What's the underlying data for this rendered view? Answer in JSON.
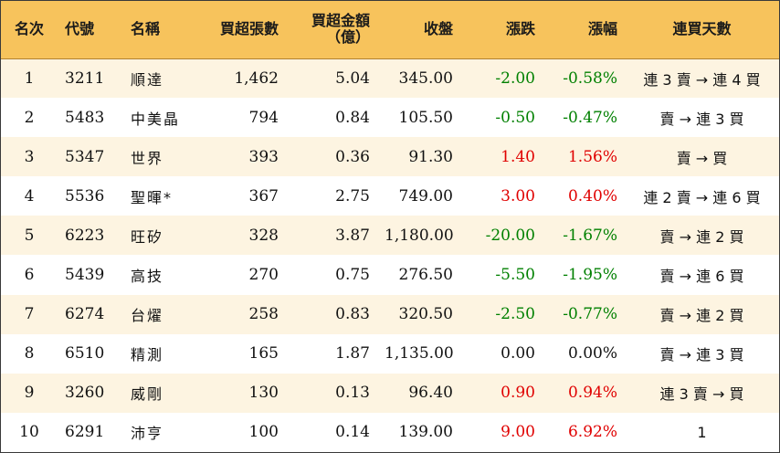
{
  "headers": {
    "rank": "名次",
    "code": "代號",
    "name": "名稱",
    "net_buy_lots": "買超張數",
    "net_buy_amount_1": "買超金額",
    "net_buy_amount_2": "（億）",
    "close": "收盤",
    "change": "漲跌",
    "change_pct": "漲幅",
    "streak": "連買天數"
  },
  "colors": {
    "header_bg": "#f7c35c",
    "stripe_bg": "#fdf4e1",
    "up": "#e00000",
    "down": "#008000"
  },
  "rows": [
    {
      "rank": "1",
      "code": "3211",
      "name": "順達",
      "lots": "1,462",
      "amount": "5.04",
      "close": "345.00",
      "change": "-2.00",
      "pct": "-0.58%",
      "streak": "連 3 賣 → 連 4 買",
      "dir": "down"
    },
    {
      "rank": "2",
      "code": "5483",
      "name": "中美晶",
      "lots": "794",
      "amount": "0.84",
      "close": "105.50",
      "change": "-0.50",
      "pct": "-0.47%",
      "streak": "賣 → 連 3 買",
      "dir": "down"
    },
    {
      "rank": "3",
      "code": "5347",
      "name": "世界",
      "lots": "393",
      "amount": "0.36",
      "close": "91.30",
      "change": "1.40",
      "pct": "1.56%",
      "streak": "賣 → 買",
      "dir": "up"
    },
    {
      "rank": "4",
      "code": "5536",
      "name": "聖暉*",
      "lots": "367",
      "amount": "2.75",
      "close": "749.00",
      "change": "3.00",
      "pct": "0.40%",
      "streak": "連 2 賣 → 連 6 買",
      "dir": "up"
    },
    {
      "rank": "5",
      "code": "6223",
      "name": "旺矽",
      "lots": "328",
      "amount": "3.87",
      "close": "1,180.00",
      "change": "-20.00",
      "pct": "-1.67%",
      "streak": "賣 → 連 2 買",
      "dir": "down"
    },
    {
      "rank": "6",
      "code": "5439",
      "name": "高技",
      "lots": "270",
      "amount": "0.75",
      "close": "276.50",
      "change": "-5.50",
      "pct": "-1.95%",
      "streak": "賣 → 連 6 買",
      "dir": "down"
    },
    {
      "rank": "7",
      "code": "6274",
      "name": "台燿",
      "lots": "258",
      "amount": "0.83",
      "close": "320.50",
      "change": "-2.50",
      "pct": "-0.77%",
      "streak": "賣 → 連 2 買",
      "dir": "down"
    },
    {
      "rank": "8",
      "code": "6510",
      "name": "精測",
      "lots": "165",
      "amount": "1.87",
      "close": "1,135.00",
      "change": "0.00",
      "pct": "0.00%",
      "streak": "賣 → 連 3 買",
      "dir": "flat"
    },
    {
      "rank": "9",
      "code": "3260",
      "name": "威剛",
      "lots": "130",
      "amount": "0.13",
      "close": "96.40",
      "change": "0.90",
      "pct": "0.94%",
      "streak": "連 3 賣 → 買",
      "dir": "up"
    },
    {
      "rank": "10",
      "code": "6291",
      "name": "沛亨",
      "lots": "100",
      "amount": "0.14",
      "close": "139.00",
      "change": "9.00",
      "pct": "6.92%",
      "streak": "1",
      "dir": "up"
    }
  ]
}
